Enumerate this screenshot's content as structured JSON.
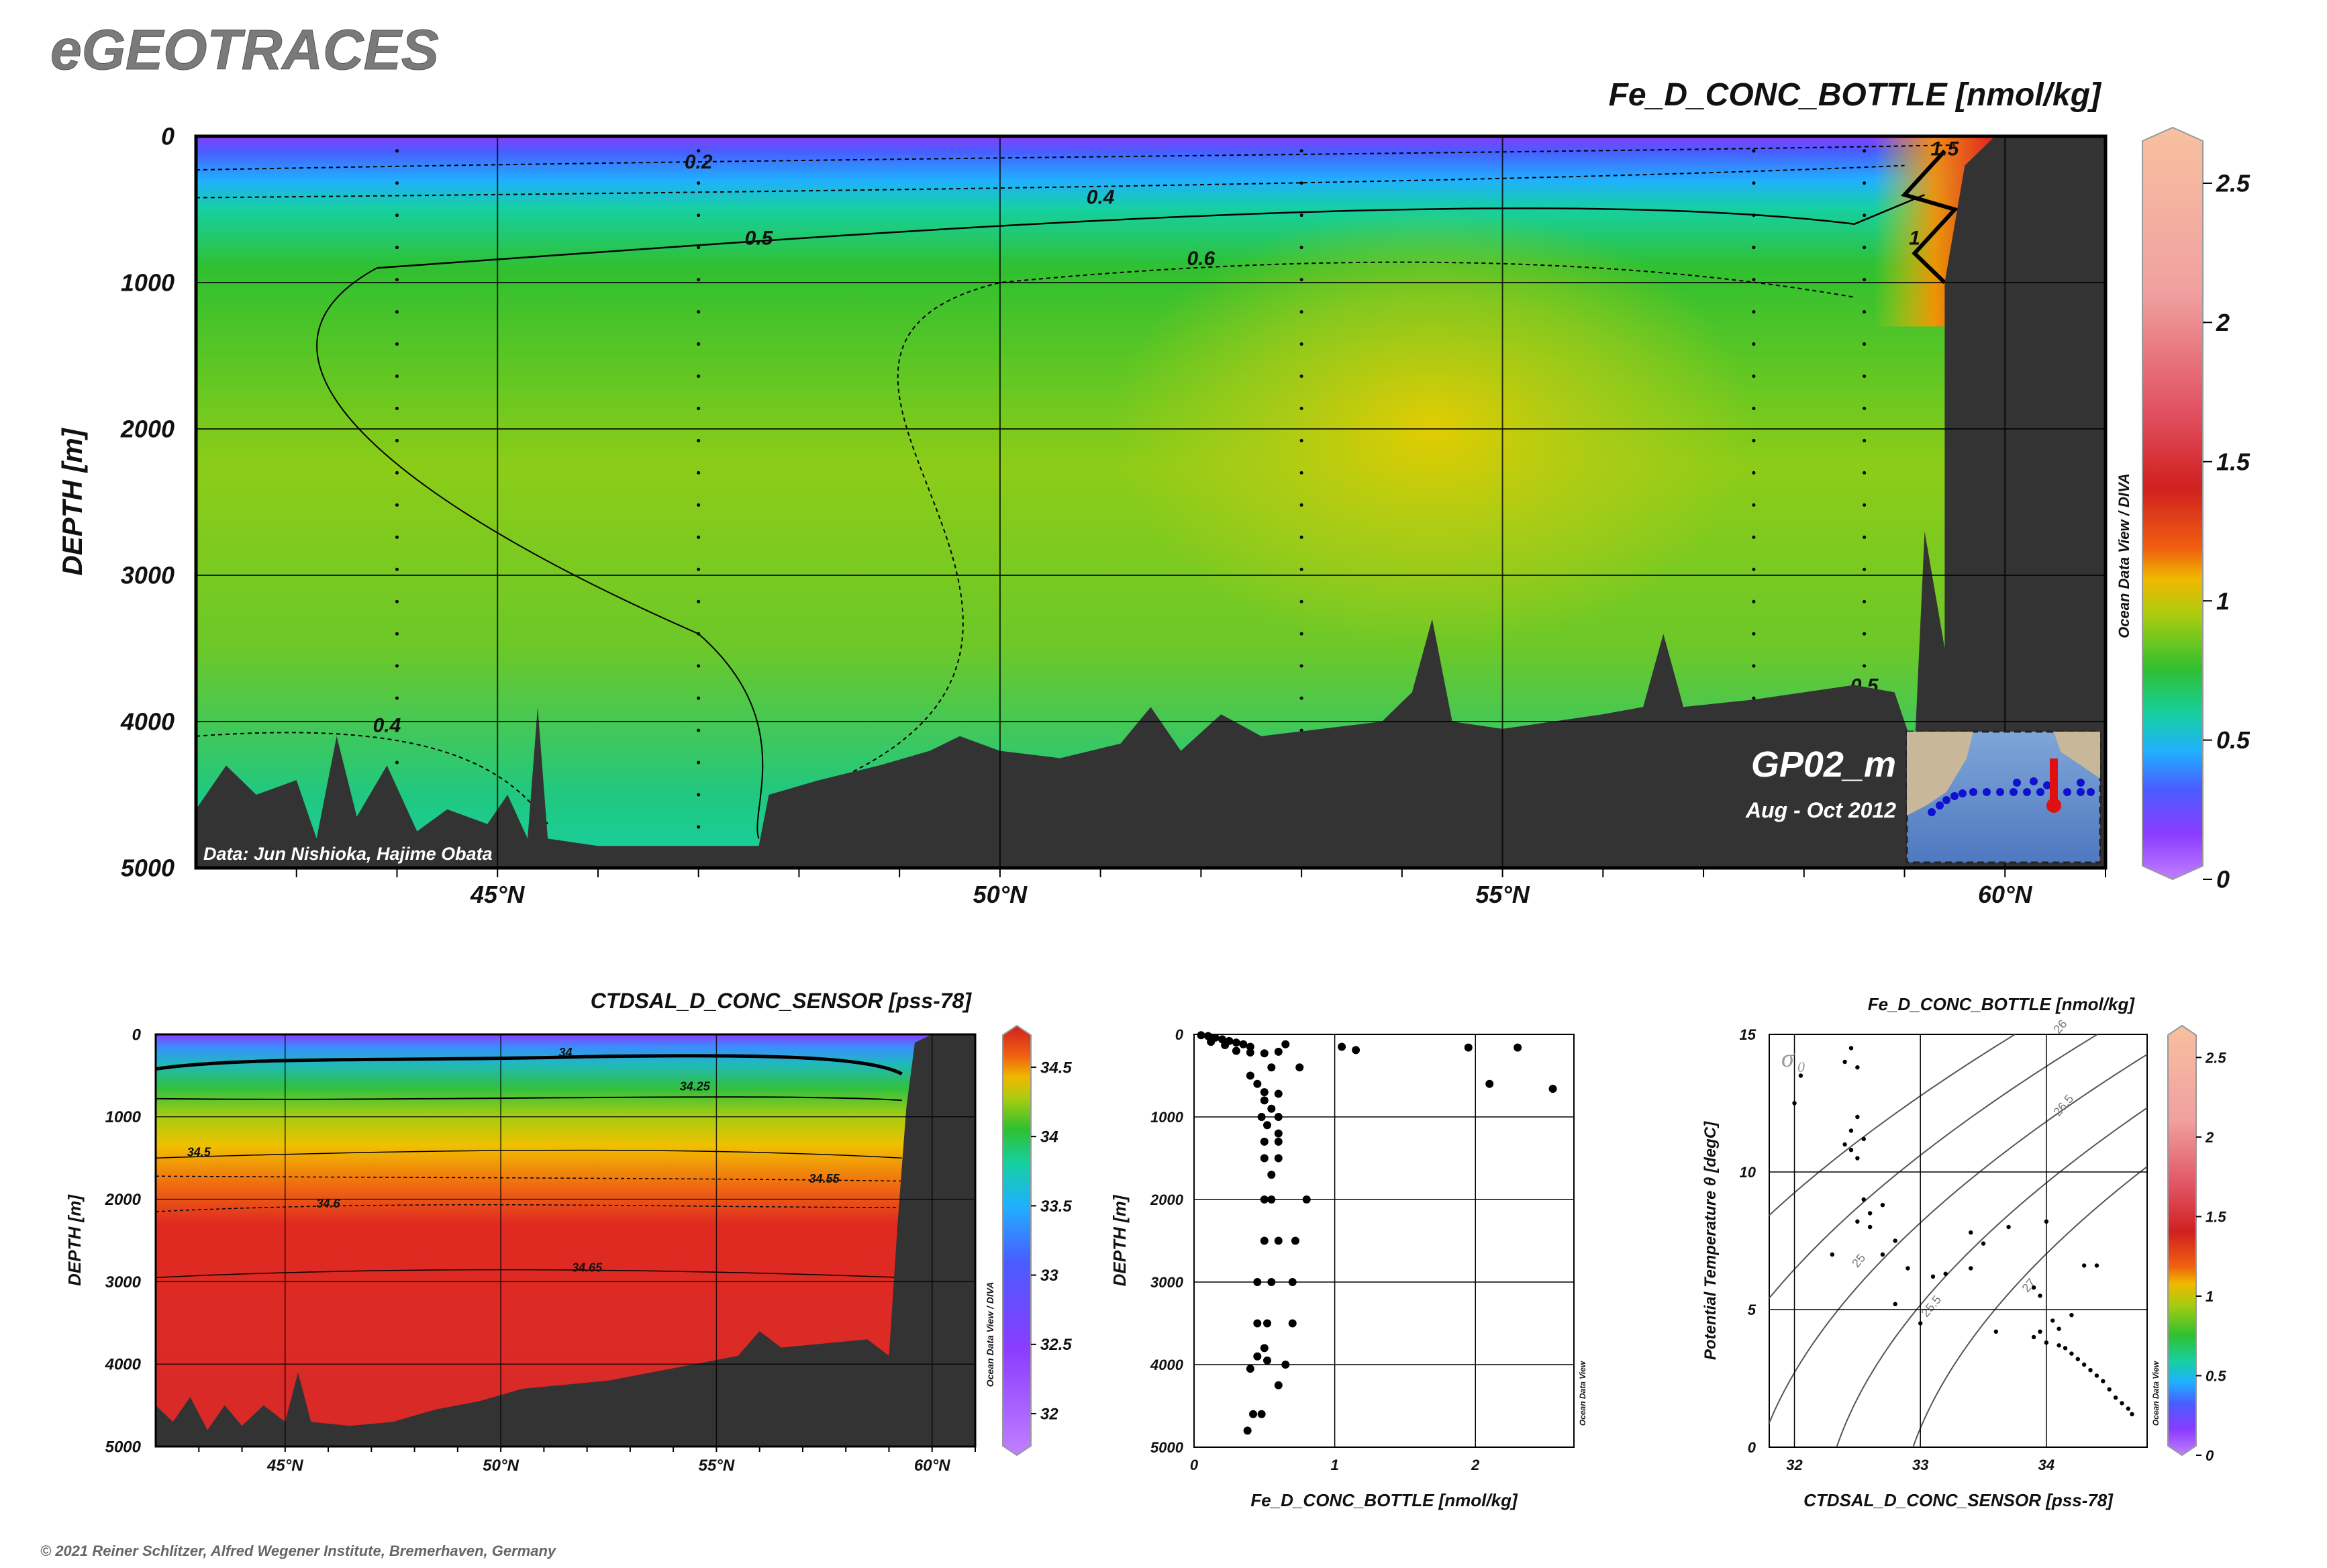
{
  "header": {
    "logo": "eGEOTRACES",
    "copyright": "© 2021 Reiner Schlitzer, Alfred Wegener Institute, Bremerhaven, Germany",
    "credit": "Data: Jun Nishioka, Hajime Obata",
    "cruise": "GP02_m",
    "period": "Aug - Oct 2012",
    "odv_label": "Ocean Data View / DIVA",
    "odv_label_short": "Ocean Data View"
  },
  "colors": {
    "colormap": [
      "#c080ff",
      "#8a3cff",
      "#4a5cff",
      "#20b0ff",
      "#16d0a0",
      "#30c030",
      "#7ccc18",
      "#c8cc10",
      "#f0b800",
      "#f06010",
      "#d02020",
      "#e05060",
      "#f0a0a0",
      "#f8c0a0"
    ],
    "bathymetry": "#333333"
  },
  "chart_data": [
    {
      "type": "heatmap",
      "title": "Fe_D_CONC_BOTTLE [nmol/kg]",
      "ylabel": "DEPTH [m]",
      "xlim": [
        42,
        61
      ],
      "ylim": [
        5000,
        0
      ],
      "xticks": [
        {
          "v": 45,
          "label": "45°N"
        },
        {
          "v": 50,
          "label": "50°N"
        },
        {
          "v": 55,
          "label": "55°N"
        },
        {
          "v": 60,
          "label": "60°N"
        }
      ],
      "yticks": [
        {
          "v": 0,
          "label": "0"
        },
        {
          "v": 1000,
          "label": "1000"
        },
        {
          "v": 2000,
          "label": "2000"
        },
        {
          "v": 3000,
          "label": "3000"
        },
        {
          "v": 4000,
          "label": "4000"
        },
        {
          "v": 5000,
          "label": "5000"
        }
      ],
      "colorbar": {
        "range": [
          0,
          2.7
        ],
        "ticks": [
          {
            "v": 0,
            "label": "0"
          },
          {
            "v": 0.5,
            "label": "0.5"
          },
          {
            "v": 1,
            "label": "1"
          },
          {
            "v": 1.5,
            "label": "1.5"
          },
          {
            "v": 2,
            "label": "2"
          },
          {
            "v": 2.5,
            "label": "2.5"
          }
        ]
      },
      "contour_labels": [
        {
          "label": "0.2",
          "x": 47.0,
          "y": 220
        },
        {
          "label": "0.4",
          "x": 51.0,
          "y": 460
        },
        {
          "label": "0.5",
          "x": 47.6,
          "y": 740
        },
        {
          "label": "0.6",
          "x": 52.0,
          "y": 880
        },
        {
          "label": "0.4",
          "x": 43.9,
          "y": 4070
        },
        {
          "label": "0.5",
          "x": 58.6,
          "y": 3800
        },
        {
          "label": "1.5",
          "x": 59.4,
          "y": 130
        },
        {
          "label": "1",
          "x": 59.1,
          "y": 740
        }
      ],
      "bathymetry": [
        [
          42,
          4600
        ],
        [
          42.3,
          4300
        ],
        [
          42.6,
          4500
        ],
        [
          43,
          4400
        ],
        [
          43.2,
          4800
        ],
        [
          43.4,
          4100
        ],
        [
          43.6,
          4650
        ],
        [
          43.9,
          4300
        ],
        [
          44.2,
          4750
        ],
        [
          44.5,
          4600
        ],
        [
          44.9,
          4700
        ],
        [
          45.1,
          4500
        ],
        [
          45.3,
          4800
        ],
        [
          45.4,
          3900
        ],
        [
          45.5,
          4800
        ],
        [
          46,
          4850
        ],
        [
          47,
          4850
        ],
        [
          47.6,
          4850
        ],
        [
          47.7,
          4500
        ],
        [
          48.2,
          4400
        ],
        [
          48.8,
          4300
        ],
        [
          49.3,
          4200
        ],
        [
          49.6,
          4100
        ],
        [
          50,
          4200
        ],
        [
          50.6,
          4250
        ],
        [
          51.2,
          4150
        ],
        [
          51.5,
          3900
        ],
        [
          51.8,
          4200
        ],
        [
          52.2,
          3950
        ],
        [
          52.6,
          4100
        ],
        [
          53.2,
          4050
        ],
        [
          53.8,
          4000
        ],
        [
          54.1,
          3800
        ],
        [
          54.3,
          3300
        ],
        [
          54.5,
          4000
        ],
        [
          55,
          4050
        ],
        [
          55.5,
          4000
        ],
        [
          56,
          3950
        ],
        [
          56.4,
          3900
        ],
        [
          56.6,
          3400
        ],
        [
          56.8,
          3900
        ],
        [
          57.5,
          3850
        ],
        [
          58,
          3800
        ],
        [
          58.5,
          3750
        ],
        [
          58.9,
          3800
        ],
        [
          59.1,
          4200
        ],
        [
          59.2,
          2700
        ],
        [
          59.4,
          3500
        ],
        [
          59.4,
          1000
        ],
        [
          59.6,
          200
        ],
        [
          59.9,
          0
        ],
        [
          61,
          0
        ],
        [
          61,
          5000
        ],
        [
          42,
          5000
        ]
      ],
      "map_inset": {
        "label": "GP02_m"
      }
    },
    {
      "type": "heatmap",
      "title": "CTDSAL_D_CONC_SENSOR [pss-78]",
      "ylabel": "DEPTH [m]",
      "xlim": [
        42,
        61
      ],
      "ylim": [
        5000,
        0
      ],
      "xticks": [
        {
          "v": 45,
          "label": "45°N"
        },
        {
          "v": 50,
          "label": "50°N"
        },
        {
          "v": 55,
          "label": "55°N"
        },
        {
          "v": 60,
          "label": "60°N"
        }
      ],
      "yticks": [
        {
          "v": 0,
          "label": "0"
        },
        {
          "v": 1000,
          "label": "1000"
        },
        {
          "v": 2000,
          "label": "2000"
        },
        {
          "v": 3000,
          "label": "3000"
        },
        {
          "v": 4000,
          "label": "4000"
        },
        {
          "v": 5000,
          "label": "5000"
        }
      ],
      "colorbar": {
        "range": [
          31.7,
          34.8
        ],
        "ticks": [
          {
            "v": 32,
            "label": "32"
          },
          {
            "v": 32.5,
            "label": "32.5"
          },
          {
            "v": 33,
            "label": "33"
          },
          {
            "v": 33.5,
            "label": "33.5"
          },
          {
            "v": 34,
            "label": "34"
          },
          {
            "v": 34.5,
            "label": "34.5"
          }
        ]
      },
      "contour_labels": [
        {
          "label": "34",
          "x": 51.5,
          "y": 270
        },
        {
          "label": "34.25",
          "x": 54.5,
          "y": 680
        },
        {
          "label": "34.5",
          "x": 43,
          "y": 1480
        },
        {
          "label": "34.55",
          "x": 57.5,
          "y": 1800
        },
        {
          "label": "34.6",
          "x": 46,
          "y": 2100
        },
        {
          "label": "34.65",
          "x": 52,
          "y": 2880
        }
      ]
    },
    {
      "type": "scatter",
      "title": "",
      "xlabel": "Fe_D_CONC_BOTTLE [nmol/kg]",
      "ylabel": "DEPTH [m]",
      "xlim": [
        0,
        2.7
      ],
      "ylim": [
        5000,
        0
      ],
      "xticks": [
        {
          "v": 0,
          "label": "0"
        },
        {
          "v": 1,
          "label": "1"
        },
        {
          "v": 2,
          "label": "2"
        }
      ],
      "yticks": [
        {
          "v": 0,
          "label": "0"
        },
        {
          "v": 1000,
          "label": "1000"
        },
        {
          "v": 2000,
          "label": "2000"
        },
        {
          "v": 3000,
          "label": "3000"
        },
        {
          "v": 4000,
          "label": "4000"
        },
        {
          "v": 5000,
          "label": "5000"
        }
      ],
      "points": [
        [
          0.05,
          10
        ],
        [
          0.1,
          20
        ],
        [
          0.15,
          40
        ],
        [
          0.2,
          60
        ],
        [
          0.25,
          80
        ],
        [
          0.3,
          100
        ],
        [
          0.35,
          120
        ],
        [
          0.4,
          150
        ],
        [
          0.12,
          90
        ],
        [
          0.22,
          130
        ],
        [
          0.3,
          200
        ],
        [
          0.4,
          220
        ],
        [
          0.5,
          230
        ],
        [
          0.6,
          210
        ],
        [
          0.65,
          120
        ],
        [
          0.55,
          400
        ],
        [
          0.75,
          400
        ],
        [
          1.05,
          150
        ],
        [
          1.15,
          190
        ],
        [
          1.95,
          160
        ],
        [
          2.1,
          600
        ],
        [
          2.3,
          160
        ],
        [
          2.55,
          660
        ],
        [
          0.4,
          500
        ],
        [
          0.45,
          600
        ],
        [
          0.5,
          700
        ],
        [
          0.6,
          720
        ],
        [
          0.5,
          800
        ],
        [
          0.55,
          900
        ],
        [
          0.48,
          1000
        ],
        [
          0.6,
          1000
        ],
        [
          0.52,
          1100
        ],
        [
          0.6,
          1200
        ],
        [
          0.5,
          1300
        ],
        [
          0.6,
          1300
        ],
        [
          0.5,
          1500
        ],
        [
          0.6,
          1500
        ],
        [
          0.55,
          1700
        ],
        [
          0.5,
          2000
        ],
        [
          0.55,
          2000
        ],
        [
          0.8,
          2000
        ],
        [
          0.5,
          2500
        ],
        [
          0.6,
          2500
        ],
        [
          0.72,
          2500
        ],
        [
          0.45,
          3000
        ],
        [
          0.55,
          3000
        ],
        [
          0.7,
          3000
        ],
        [
          0.45,
          3500
        ],
        [
          0.52,
          3500
        ],
        [
          0.7,
          3500
        ],
        [
          0.5,
          3800
        ],
        [
          0.45,
          3900
        ],
        [
          0.52,
          3950
        ],
        [
          0.65,
          4000
        ],
        [
          0.4,
          4050
        ],
        [
          0.6,
          4250
        ],
        [
          0.42,
          4600
        ],
        [
          0.48,
          4600
        ],
        [
          0.38,
          4800
        ]
      ]
    },
    {
      "type": "scatter",
      "title": "Fe_D_CONC_BOTTLE [nmol/kg]",
      "xlabel": "CTDSAL_D_CONC_SENSOR [pss-78]",
      "ylabel": "Potential Temperature θ [degC]",
      "xlim": [
        31.8,
        34.8
      ],
      "ylim": [
        0,
        15
      ],
      "xticks": [
        {
          "v": 32,
          "label": "32"
        },
        {
          "v": 33,
          "label": "33"
        },
        {
          "v": 34,
          "label": "34"
        }
      ],
      "yticks": [
        {
          "v": 0,
          "label": "0"
        },
        {
          "v": 5,
          "label": "5"
        },
        {
          "v": 10,
          "label": "10"
        },
        {
          "v": 15,
          "label": "15"
        }
      ],
      "isopycnal_symbol": "σ",
      "isopycnal_subscript": "0",
      "isopycnals": [
        {
          "label": "25",
          "v": 25
        },
        {
          "label": "25.5",
          "v": 25.5
        },
        {
          "label": "26",
          "v": 26
        },
        {
          "label": "26.5",
          "v": 26.5
        },
        {
          "label": "27",
          "v": 27
        }
      ],
      "points": [
        [
          32.0,
          12.5
        ],
        [
          32.05,
          13.5
        ],
        [
          32.4,
          14.0
        ],
        [
          32.45,
          14.5
        ],
        [
          32.5,
          13.8
        ],
        [
          32.5,
          12.0
        ],
        [
          32.45,
          11.5
        ],
        [
          32.4,
          11.0
        ],
        [
          32.45,
          10.8
        ],
        [
          32.55,
          11.2
        ],
        [
          32.5,
          10.5
        ],
        [
          32.55,
          9.0
        ],
        [
          32.6,
          8.5
        ],
        [
          32.7,
          8.8
        ],
        [
          32.8,
          7.5
        ],
        [
          32.6,
          8.0
        ],
        [
          32.5,
          8.2
        ],
        [
          32.7,
          7.0
        ],
        [
          32.3,
          7.0
        ],
        [
          32.8,
          5.2
        ],
        [
          33.0,
          4.5
        ],
        [
          32.9,
          6.5
        ],
        [
          33.1,
          6.2
        ],
        [
          33.2,
          6.3
        ],
        [
          33.4,
          7.8
        ],
        [
          33.5,
          7.4
        ],
        [
          33.4,
          6.5
        ],
        [
          33.7,
          8.0
        ],
        [
          33.9,
          5.8
        ],
        [
          33.95,
          5.5
        ],
        [
          34.0,
          8.2
        ],
        [
          33.9,
          4.0
        ],
        [
          33.95,
          4.2
        ],
        [
          34.0,
          3.8
        ],
        [
          34.1,
          3.7
        ],
        [
          34.15,
          3.6
        ],
        [
          34.2,
          3.4
        ],
        [
          34.25,
          3.2
        ],
        [
          34.3,
          3.0
        ],
        [
          34.35,
          2.8
        ],
        [
          34.4,
          2.6
        ],
        [
          34.45,
          2.4
        ],
        [
          34.5,
          2.1
        ],
        [
          34.55,
          1.8
        ],
        [
          34.6,
          1.6
        ],
        [
          34.65,
          1.4
        ],
        [
          34.68,
          1.2
        ],
        [
          34.1,
          4.3
        ],
        [
          34.05,
          4.6
        ],
        [
          34.2,
          4.8
        ],
        [
          34.3,
          6.6
        ],
        [
          34.4,
          6.6
        ],
        [
          33.6,
          4.2
        ]
      ]
    }
  ]
}
